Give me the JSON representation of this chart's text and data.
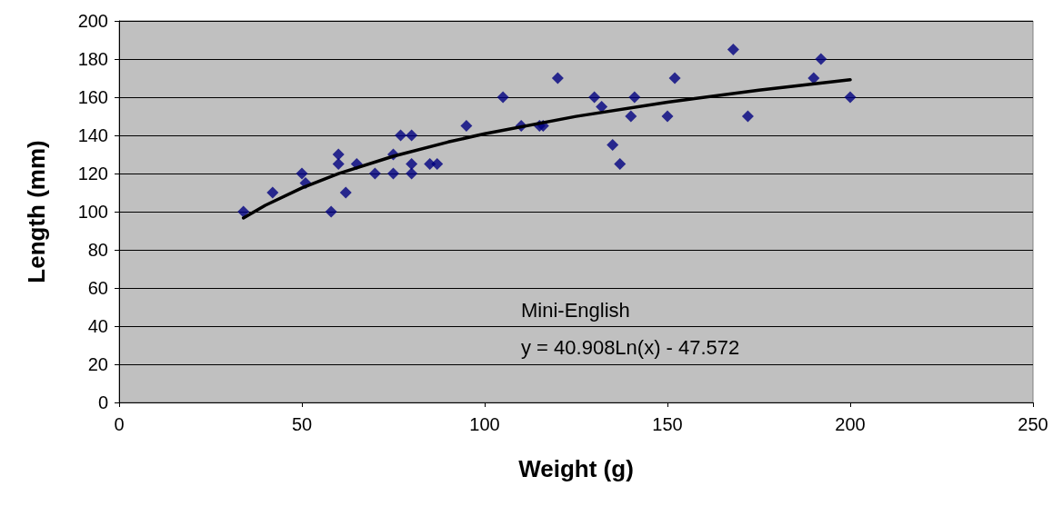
{
  "chart_data": {
    "type": "scatter",
    "xlabel": "Weight (g)",
    "ylabel": "Length (mm)",
    "xlim": [
      0,
      250
    ],
    "xticks": [
      0,
      50,
      100,
      150,
      200,
      250
    ],
    "ylim": [
      0,
      200
    ],
    "yticks": [
      0,
      20,
      40,
      60,
      80,
      100,
      120,
      140,
      160,
      180,
      200
    ],
    "grid": "y",
    "marker": "diamond",
    "annotations": [
      "Mini-English",
      "y = 40.908Ln(x) - 47.572"
    ],
    "series": [
      {
        "color": "#000080",
        "x": [
          34,
          42,
          50,
          51,
          58,
          60,
          60,
          62,
          65,
          70,
          75,
          75,
          77,
          80,
          80,
          80,
          85,
          87,
          95,
          105,
          110,
          115,
          116,
          120,
          130,
          132,
          135,
          137,
          140,
          141,
          150,
          152,
          168,
          172,
          190,
          192,
          200
        ],
        "values": [
          100,
          110,
          120,
          115,
          100,
          130,
          125,
          110,
          125,
          120,
          120,
          130,
          140,
          140,
          125,
          120,
          125,
          125,
          145,
          160,
          145,
          145,
          145,
          170,
          160,
          155,
          135,
          125,
          150,
          160,
          150,
          170,
          185,
          150,
          170,
          180,
          160
        ]
      },
      {
        "type": "line",
        "color": "#000000",
        "marker": "none",
        "line_style": "solid",
        "x": [
          34,
          40,
          50,
          60,
          75,
          90,
          100,
          125,
          150,
          175,
          200
        ],
        "values": [
          96.69,
          103.33,
          112.46,
          119.92,
          129.05,
          136.51,
          140.82,
          149.94,
          157.4,
          163.71,
          169.17
        ]
      }
    ]
  }
}
